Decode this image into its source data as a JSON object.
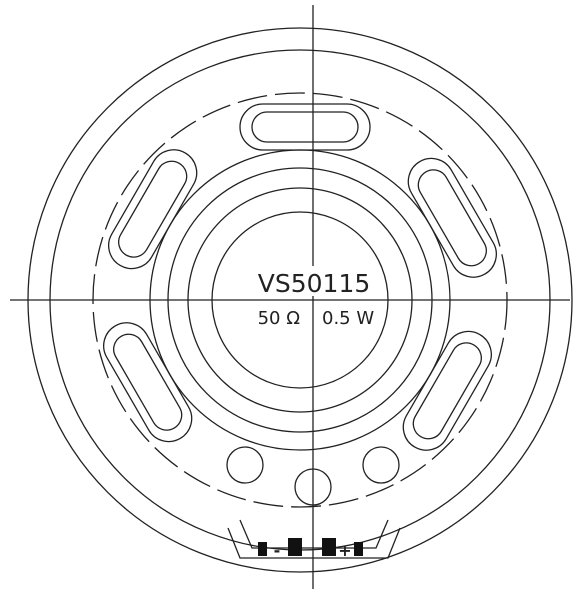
{
  "label": {
    "model": "VS50115",
    "impedance": "50 Ω",
    "power": "0.5 W"
  },
  "terminals": {
    "negative": "-",
    "positive": "+"
  }
}
